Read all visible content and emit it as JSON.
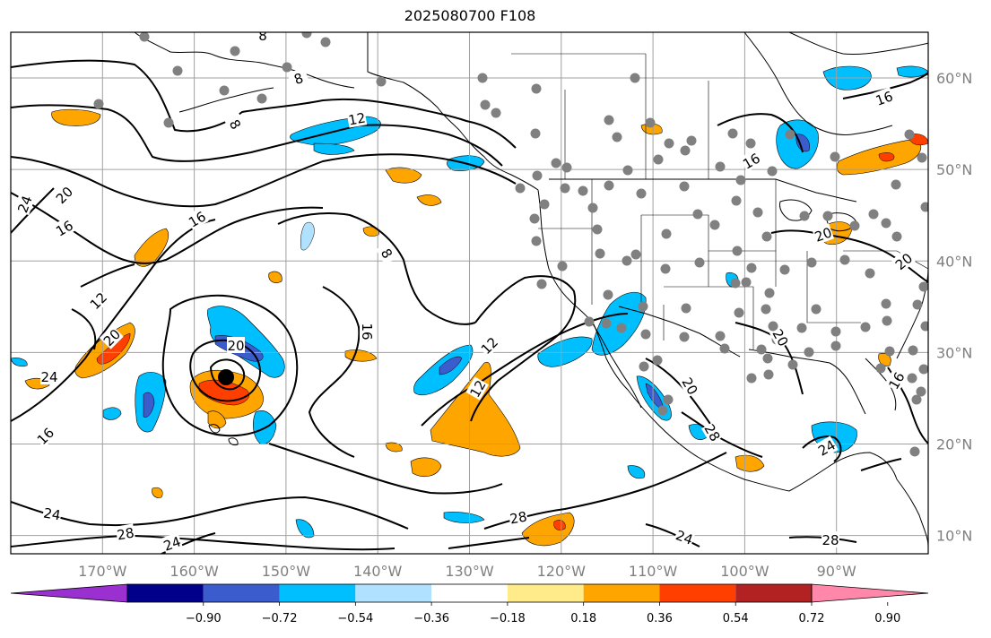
{
  "title": "2025080700 F108",
  "map": {
    "lon_range": [
      -180,
      -80
    ],
    "lat_range": [
      8,
      65
    ],
    "lon_ticks": [
      "170°W",
      "160°W",
      "150°W",
      "140°W",
      "130°W",
      "120°W",
      "110°W",
      "100°W",
      "90°W"
    ],
    "lat_ticks": [
      "10°N",
      "20°N",
      "30°N",
      "40°N",
      "50°N",
      "60°N"
    ],
    "contour_labels": [
      "8",
      "8",
      "12",
      "16",
      "16",
      "16",
      "20",
      "20",
      "24",
      "24",
      "12",
      "20",
      "24",
      "8",
      "16",
      "8",
      "12",
      "20",
      "24",
      "28",
      "16",
      "20",
      "28",
      "20",
      "24",
      "28",
      "16",
      "24",
      "28",
      "16",
      "20",
      "12"
    ],
    "cyclone_marker": "filled-black-dot",
    "stations": "grey-dots"
  },
  "colorbar": {
    "extend": "both",
    "ticks": [
      "−0.90",
      "−0.72",
      "−0.54",
      "−0.36",
      "−0.18",
      "0.18",
      "0.36",
      "0.54",
      "0.72",
      "0.90"
    ],
    "colors": [
      "#9b30d0",
      "#00008b",
      "#3a5ccc",
      "#00bfff",
      "#b0e2ff",
      "#ffffff",
      "#ffeb8a",
      "#ffa500",
      "#ff3f00",
      "#b22222",
      "#ff88aa"
    ]
  },
  "colors": {
    "neg_strong": "#3a5ccc",
    "neg_mid": "#00bfff",
    "neg_light": "#b0e2ff",
    "pos_light": "#ffeb8a",
    "pos_mid": "#ffa500",
    "pos_strong": "#ff3f00",
    "pos_deep": "#b22222",
    "grid": "#a0a0a0",
    "station": "#808080"
  }
}
